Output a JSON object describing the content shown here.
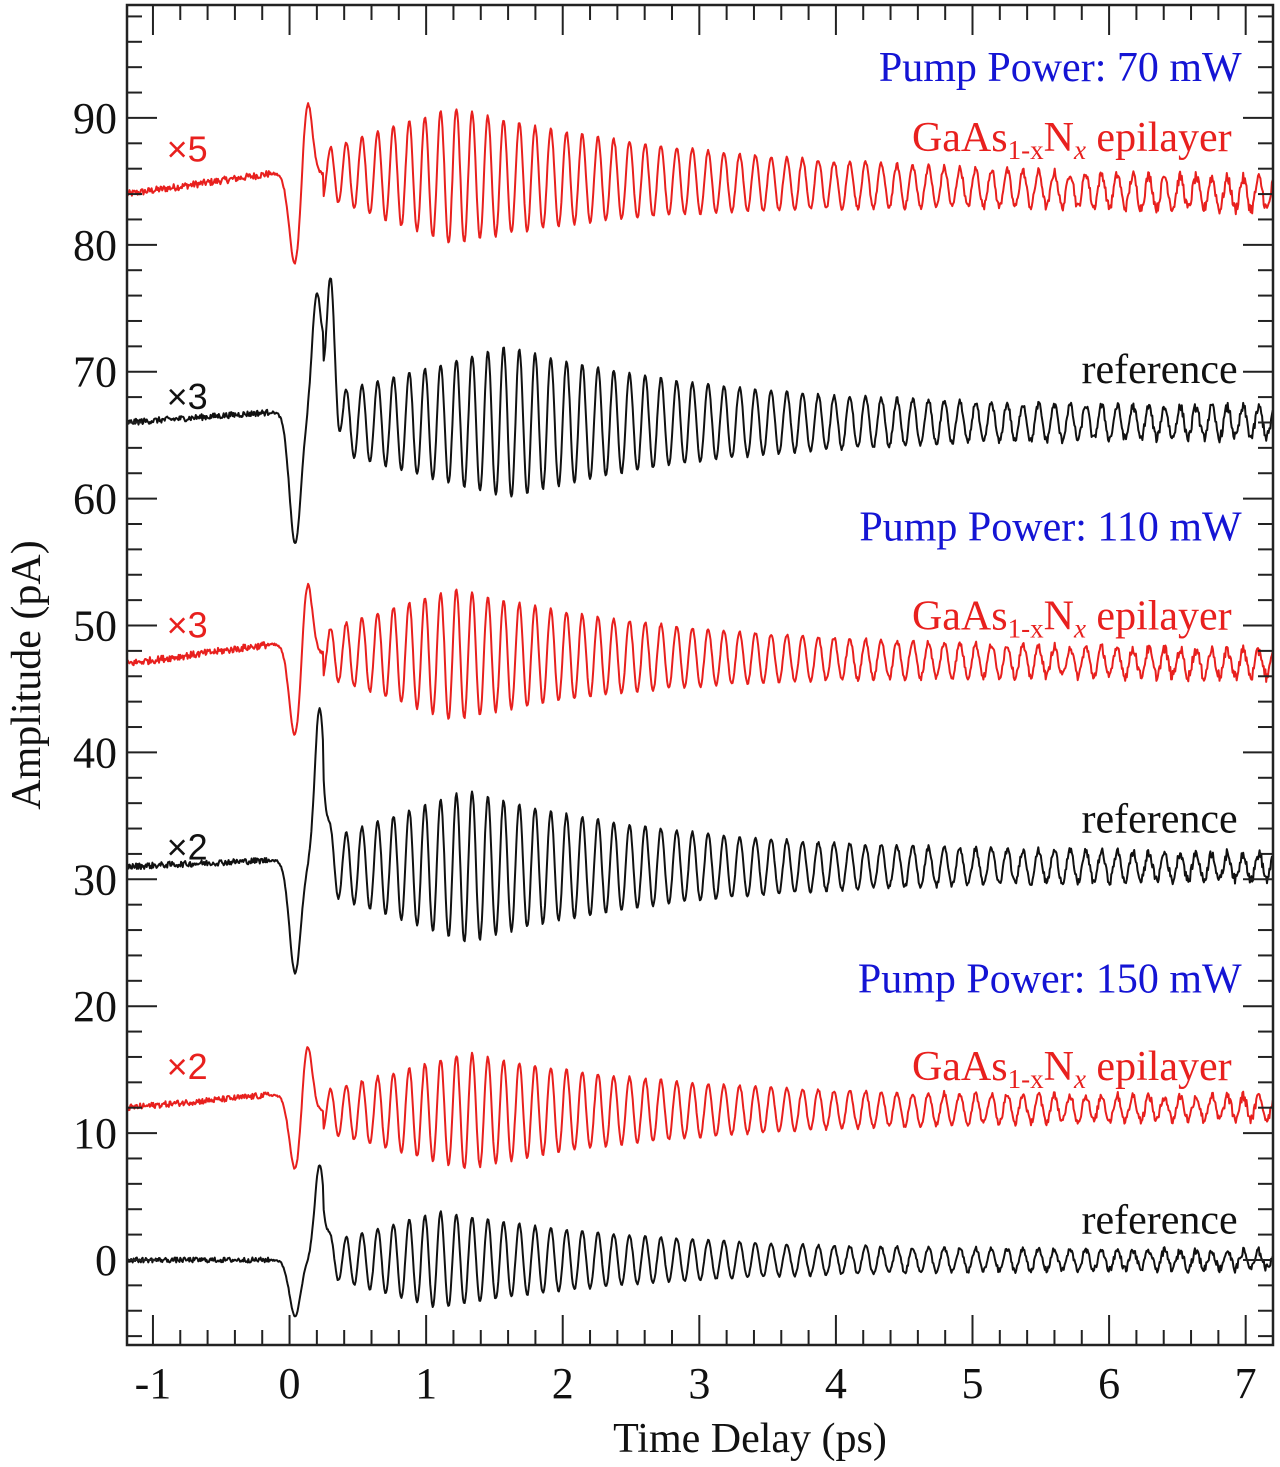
{
  "chart_data": {
    "type": "line",
    "title": "",
    "xlabel": "Time Delay (ps)",
    "ylabel": "Amplitude (pA)",
    "xlim": [
      -1.19,
      7.2
    ],
    "ylim": [
      -6.7,
      98.9
    ],
    "x_major_ticks": [
      -1,
      0,
      1,
      2,
      3,
      4,
      5,
      6,
      7
    ],
    "x_tick_labels": [
      "-1",
      "0",
      "1",
      "2",
      "3",
      "4",
      "5",
      "6",
      "7"
    ],
    "x_minor_step": 0.2,
    "y_major_ticks": [
      0,
      10,
      20,
      30,
      40,
      50,
      60,
      70,
      80,
      90
    ],
    "y_tick_labels": [
      "0",
      "10",
      "20",
      "30",
      "40",
      "50",
      "60",
      "70",
      "80",
      "90"
    ],
    "y_minor_step": 2,
    "grid": false,
    "colors": {
      "epilayer": "#e8201e",
      "reference": "#111111",
      "pump": "#1414d4"
    },
    "groups": [
      {
        "pump_label": "Pump Power: 70 mW",
        "pump_anchor": [
          7.0,
          94.0
        ],
        "sample_anchor": [
          7.0,
          88.5
        ]
      },
      {
        "pump_label": "Pump Power: 110 mW",
        "pump_anchor": [
          7.0,
          57.8
        ],
        "sample_anchor": [
          7.0,
          50.8
        ]
      },
      {
        "pump_label": "Pump Power: 150 mW",
        "pump_anchor": [
          7.0,
          22.2
        ],
        "sample_anchor": [
          7.0,
          15.3
        ]
      }
    ],
    "sample_label": {
      "main1": "GaAs",
      "sub1": "1-x",
      "main2": "N",
      "sub2": "x",
      "tail": " epilayer"
    },
    "series": [
      {
        "name": "70 mW GaAs1-xNx epilayer",
        "kind": "epilayer",
        "scale_label": "×5",
        "scale_anchor": [
          -0.9,
          87.5
        ],
        "baseline": 84.0,
        "prerise": 1.6,
        "osc_center": 85.6,
        "osc_center_end": 84.0,
        "dip": {
          "t": 0.05,
          "value": 76.5
        },
        "peak": {
          "t": 0.13,
          "value": 91.6
        },
        "osc_amp_max": 5.4,
        "osc_amp_end": 1.1,
        "osc_peak_time": 1.2,
        "freq_thz": 8.68,
        "noise": 0.35
      },
      {
        "name": "70 mW reference",
        "kind": "reference",
        "scale_label": "×3",
        "scale_anchor": [
          -0.9,
          68.0
        ],
        "label": "reference",
        "label_anchor": [
          7.0,
          70.2
        ],
        "baseline": 66.0,
        "prerise": 0.8,
        "osc_center": 66.0,
        "osc_center_end": 66.0,
        "dip": {
          "t": 0.05,
          "value": 54.0
        },
        "peak": {
          "t": 0.2,
          "value": 76.0
        },
        "peak2": {
          "t": 0.3,
          "value": 75.0
        },
        "osc_amp_max": 6.0,
        "osc_amp_end": 1.0,
        "osc_peak_time": 1.6,
        "freq_thz": 8.68,
        "noise": 0.3
      },
      {
        "name": "110 mW GaAs1-xNx epilayer",
        "kind": "epilayer",
        "scale_label": "×3",
        "scale_anchor": [
          -0.9,
          50.0
        ],
        "baseline": 47.0,
        "prerise": 1.5,
        "osc_center": 47.8,
        "osc_center_end": 47.0,
        "dip": {
          "t": 0.05,
          "value": 39.5
        },
        "peak": {
          "t": 0.13,
          "value": 53.5
        },
        "osc_amp_max": 5.2,
        "osc_amp_end": 0.9,
        "osc_peak_time": 1.2,
        "freq_thz": 8.68,
        "noise": 0.35
      },
      {
        "name": "110 mW reference",
        "kind": "reference",
        "scale_label": "×2",
        "scale_anchor": [
          -0.9,
          32.5
        ],
        "label": "reference",
        "label_anchor": [
          7.0,
          34.8
        ],
        "baseline": 31.0,
        "prerise": 0.5,
        "osc_center": 31.0,
        "osc_center_end": 31.0,
        "dip": {
          "t": 0.05,
          "value": 20.5
        },
        "peak": {
          "t": 0.22,
          "value": 43.5
        },
        "osc_amp_max": 6.0,
        "osc_amp_end": 0.9,
        "osc_peak_time": 1.3,
        "freq_thz": 8.68,
        "noise": 0.3
      },
      {
        "name": "150 mW GaAs1-xNx epilayer",
        "kind": "epilayer",
        "scale_label": "×2",
        "scale_anchor": [
          -0.9,
          15.2
        ],
        "baseline": 12.0,
        "prerise": 1.0,
        "osc_center": 11.7,
        "osc_center_end": 12.0,
        "dip": {
          "t": 0.05,
          "value": 5.8
        },
        "peak": {
          "t": 0.13,
          "value": 16.8
        },
        "osc_amp_max": 4.6,
        "osc_amp_end": 0.8,
        "osc_peak_time": 1.3,
        "freq_thz": 8.68,
        "noise": 0.3
      },
      {
        "name": "150 mW reference",
        "kind": "reference",
        "scale_label": "",
        "scale_anchor": null,
        "label": "reference",
        "label_anchor": [
          7.0,
          3.2
        ],
        "baseline": 0.0,
        "prerise": 0.0,
        "osc_center": 0.0,
        "osc_center_end": 0.0,
        "dip": {
          "t": 0.05,
          "value": -5.5
        },
        "peak": {
          "t": 0.22,
          "value": 7.5
        },
        "osc_amp_max": 3.8,
        "osc_amp_end": 0.6,
        "osc_peak_time": 1.1,
        "freq_thz": 8.68,
        "noise": 0.25
      }
    ]
  }
}
